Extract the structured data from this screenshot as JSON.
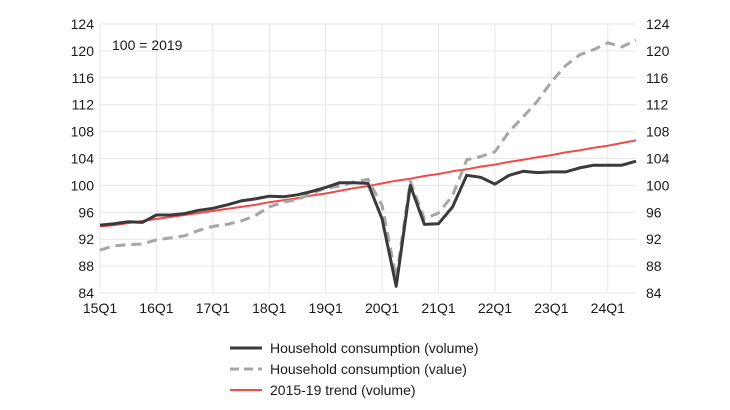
{
  "chart_data": {
    "type": "line",
    "annotation": "100 = 2019",
    "ylim": [
      84,
      124
    ],
    "y_ticks": [
      84,
      88,
      92,
      96,
      100,
      104,
      108,
      112,
      116,
      120,
      124
    ],
    "x_tick_labels": [
      "15Q1",
      "16Q1",
      "17Q1",
      "18Q1",
      "19Q1",
      "20Q1",
      "21Q1",
      "22Q1",
      "23Q1",
      "24Q1"
    ],
    "x_tick_index": [
      0,
      4,
      8,
      12,
      16,
      20,
      24,
      28,
      32,
      36
    ],
    "n_points": 39,
    "series": [
      {
        "name": "2015-19 trend (volume)",
        "color": "#f04a4a",
        "style": "solid",
        "values": [
          93.9,
          94.1,
          94.4,
          94.7,
          95.0,
          95.3,
          95.6,
          95.9,
          96.2,
          96.5,
          96.8,
          97.1,
          97.5,
          97.8,
          98.1,
          98.5,
          98.8,
          99.2,
          99.6,
          99.9,
          100.3,
          100.7,
          101.0,
          101.4,
          101.7,
          102.1,
          102.4,
          102.8,
          103.1,
          103.5,
          103.8,
          104.2,
          104.5,
          104.9,
          105.2,
          105.6,
          105.9,
          106.3,
          106.7
        ]
      },
      {
        "name": "Household consumption (value)",
        "color": "#a6a6a6",
        "style": "dashed",
        "values": [
          90.4,
          91.0,
          91.2,
          91.3,
          91.9,
          92.2,
          92.5,
          93.3,
          93.9,
          94.2,
          94.7,
          95.5,
          96.8,
          97.5,
          97.9,
          98.8,
          99.6,
          99.9,
          100.5,
          100.9,
          97.0,
          86.2,
          100.6,
          95.0,
          95.9,
          98.5,
          103.8,
          104.3,
          105.0,
          108.0,
          110.2,
          112.5,
          115.4,
          117.8,
          119.4,
          120.2,
          121.2,
          120.6,
          121.6
        ]
      },
      {
        "name": "Household consumption (volume)",
        "color": "#3a3a3a",
        "style": "solid",
        "values": [
          94.1,
          94.3,
          94.6,
          94.5,
          95.6,
          95.6,
          95.8,
          96.3,
          96.6,
          97.1,
          97.7,
          98.0,
          98.4,
          98.3,
          98.6,
          99.1,
          99.7,
          100.4,
          100.4,
          100.3,
          95.0,
          85.0,
          100.0,
          94.2,
          94.3,
          96.8,
          101.5,
          101.2,
          100.2,
          101.5,
          102.1,
          101.9,
          102.0,
          102.0,
          102.6,
          103.0,
          103.0,
          103.0,
          103.6
        ]
      }
    ],
    "legend": [
      {
        "label": "Household consumption (volume)",
        "color": "#3a3a3a",
        "style": "solid"
      },
      {
        "label": "Household consumption (value)",
        "color": "#a6a6a6",
        "style": "dashed"
      },
      {
        "label": "2015-19 trend (volume)",
        "color": "#f04a4a",
        "style": "solid"
      }
    ]
  }
}
